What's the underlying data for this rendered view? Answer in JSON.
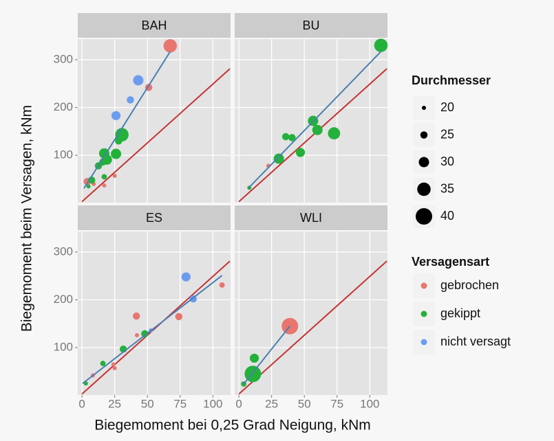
{
  "chart_data": {
    "type": "scatter",
    "xlabel": "Biegemoment bei 0,25 Grad Neigung, kNm",
    "ylabel": "Biegemoment beim Versagen, kNm",
    "xlim": [
      -3.2,
      113.5
    ],
    "ylim": [
      1,
      343
    ],
    "xticks": [
      0,
      25,
      50,
      75,
      100
    ],
    "yticks": [
      100,
      200,
      300
    ],
    "grid": true,
    "size_legend": {
      "title": "Durchmesser",
      "values": [
        20,
        25,
        30,
        35,
        40
      ]
    },
    "color_legend_title": "Versagensart",
    "series": [
      {
        "name": "gebrochen",
        "color": "#e8766f"
      },
      {
        "name": "gekippt",
        "color": "#23b13a"
      },
      {
        "name": "nicht versagt",
        "color": "#6b9cf0"
      }
    ],
    "fit_color": "#4a7fb0",
    "reference_line": {
      "x": [
        0,
        113
      ],
      "y": [
        3,
        281
      ],
      "color": "#c83232"
    },
    "facets": [
      {
        "title": "BAH",
        "series": [
          {
            "x": [
              67.4,
              51,
              25,
              17,
              4,
              9
            ],
            "y": [
              329,
              242,
              57,
              37,
              45,
              40
            ],
            "size": [
              35,
              25,
              20,
              20,
              25,
              20
            ]
          },
          {
            "x": [
              30.5,
              28,
              26,
              17,
              19,
              12.6,
              16,
              17,
              7.4,
              5
            ],
            "y": [
              143,
              130,
              103,
              104,
              91,
              78,
              86,
              55,
              48,
              35
            ],
            "size": [
              35,
              25,
              30,
              30,
              30,
              25,
              25,
              22,
              25,
              20
            ]
          },
          {
            "x": [
              43,
              37,
              26
            ],
            "y": [
              257,
              216,
              183
            ],
            "size": [
              30,
              25,
              28
            ]
          }
        ],
        "fit": {
          "x": [
            1.6,
            67.4
          ],
          "y": [
            31,
            317
          ]
        }
      },
      {
        "title": "BU",
        "series": [
          {
            "x": [
              22.5
            ],
            "y": [
              78
            ],
            "size": [
              20
            ]
          },
          {
            "x": [
              108.5,
              56.7,
              60,
              72.7,
              35.8,
              40.6,
              47,
              30.5,
              8
            ],
            "y": [
              330,
              172,
              153,
              146,
              139,
              137,
              106,
              93,
              32
            ],
            "size": [
              35,
              30,
              30,
              33,
              25,
              25,
              28,
              30,
              20
            ]
          },
          {
            "x": [],
            "y": [],
            "size": []
          }
        ],
        "fit": {
          "x": [
            7.5,
            108.5
          ],
          "y": [
            32,
            317
          ]
        }
      },
      {
        "title": "ES",
        "series": [
          {
            "x": [
              107,
              74,
              41.6,
              42,
              25,
              24,
              8.4
            ],
            "y": [
              231,
              165,
              166,
              126,
              57,
              65,
              42
            ],
            "size": [
              22,
              25,
              25,
              20,
              20,
              20,
              20
            ]
          },
          {
            "x": [
              48,
              31.6,
              16,
              3
            ],
            "y": [
              129,
              97,
              67,
              25
            ],
            "size": [
              25,
              25,
              22,
              20
            ]
          },
          {
            "x": [
              79.5,
              85,
              52.6
            ],
            "y": [
              248,
              202,
              136
            ],
            "size": [
              28,
              25,
              20
            ]
          }
        ],
        "fit": {
          "x": [
            0.5,
            107
          ],
          "y": [
            25,
            251
          ]
        }
      },
      {
        "title": "WLI",
        "series": [
          {
            "x": [
              39
            ],
            "y": [
              145
            ],
            "size": [
              40
            ]
          },
          {
            "x": [
              10.7,
              11.8,
              3.7
            ],
            "y": [
              45,
              78,
              24
            ],
            "size": [
              40,
              28,
              22
            ]
          },
          {
            "x": [],
            "y": [],
            "size": []
          }
        ],
        "fit": {
          "x": [
            3.7,
            39
          ],
          "y": [
            24,
            145
          ]
        }
      }
    ]
  }
}
